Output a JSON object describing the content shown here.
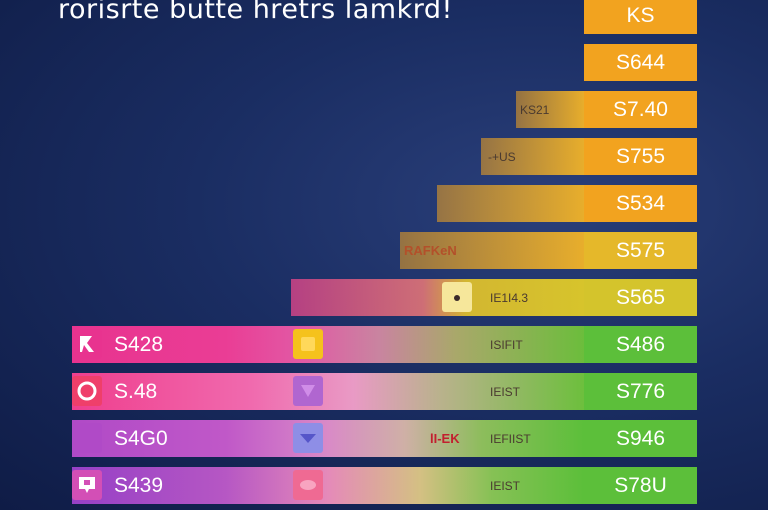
{
  "chart_data": {
    "type": "table",
    "title": "rorisrte butte hretrs lamkrd!",
    "header": "KS",
    "rows": [
      {
        "value": "S644",
        "sublabel": "",
        "color": "#f2a31f"
      },
      {
        "value": "S7.40",
        "sublabel": "KS21",
        "color": "#f2a31f"
      },
      {
        "value": "S755",
        "sublabel": "-+US",
        "color": "#f2a31f"
      },
      {
        "value": "S534",
        "sublabel": "",
        "color": "#f2a31f"
      },
      {
        "value": "S575",
        "sublabel": "RAFKeN",
        "color": "#e5b82a"
      },
      {
        "value": "S565",
        "sublabel": "IE1I4.3",
        "color": "#d4c42c"
      },
      {
        "value": "S486",
        "sublabel": "ISIFIT",
        "price": "S428",
        "color": "#5cbf3a"
      },
      {
        "value": "S776",
        "sublabel": "IEIST",
        "price": "S.48",
        "color": "#5cbf3a"
      },
      {
        "value": "S946",
        "sublabel": "IEFIIST",
        "price": "S4G0",
        "color": "#5cbf3a"
      },
      {
        "value": "S78U",
        "sublabel": "IEIST",
        "price": "S439",
        "color": "#5cbf3a"
      }
    ],
    "aux_label": "lI-EK"
  },
  "colors": {
    "orange": "#f2a31f",
    "green": "#5cbf3a",
    "magenta": "#e8338f",
    "pink": "#ef5aa8",
    "purple": "#a54bc7"
  },
  "icons": [
    "flag-icon",
    "circle-icon",
    "down-triangle-icon",
    "comment-icon"
  ]
}
